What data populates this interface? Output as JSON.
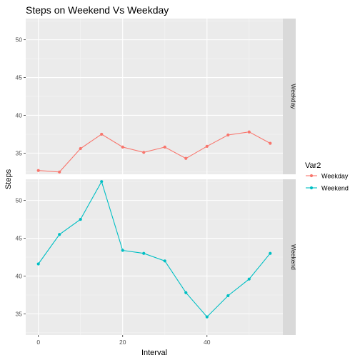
{
  "chart_data": {
    "type": "line",
    "title": "Steps on Weekend Vs Weekday",
    "xlabel": "Interval",
    "ylabel": "Steps",
    "xlim": [
      -3,
      58
    ],
    "x_ticks": [
      0,
      20,
      40
    ],
    "y_ticks": [
      35,
      40,
      45,
      50
    ],
    "grid": true,
    "legend": {
      "title": "Var2",
      "position": "right"
    },
    "panels": [
      {
        "label": "Weekday",
        "ylim": [
          32.2,
          52.8
        ],
        "series": [
          {
            "name": "Weekday",
            "color": "#F8766D",
            "x": [
              0,
              5,
              10,
              15,
              20,
              25,
              30,
              35,
              40,
              45,
              50,
              55
            ],
            "y": [
              32.7,
              32.5,
              35.6,
              37.5,
              35.8,
              35.1,
              35.8,
              34.3,
              35.9,
              37.4,
              37.8,
              36.3
            ]
          }
        ]
      },
      {
        "label": "Weekend",
        "ylim": [
          32.2,
          52.8
        ],
        "series": [
          {
            "name": "Weekend",
            "color": "#00BFC4",
            "x": [
              0,
              5,
              10,
              15,
              20,
              25,
              30,
              35,
              40,
              45,
              50,
              55
            ],
            "y": [
              41.6,
              45.5,
              47.5,
              52.5,
              43.4,
              43.0,
              42.0,
              37.8,
              34.6,
              37.4,
              39.6,
              43.0
            ]
          }
        ]
      }
    ]
  }
}
